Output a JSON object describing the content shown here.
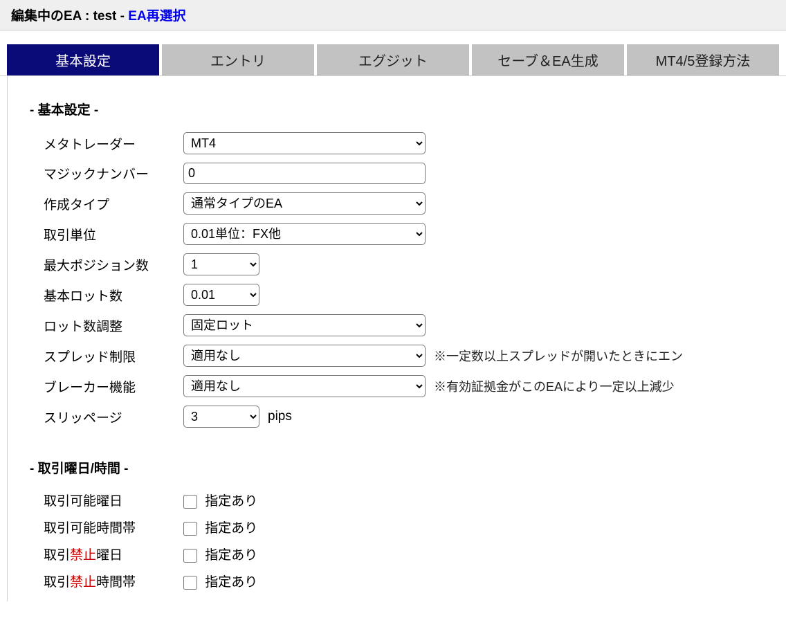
{
  "header": {
    "prefix": "編集中のEA : ",
    "ea_name": "test",
    "separator": "  -  ",
    "reselect_label": "EA再選択"
  },
  "tabs": [
    {
      "label": "基本設定",
      "active": true
    },
    {
      "label": "エントリ",
      "active": false
    },
    {
      "label": "エグジット",
      "active": false
    },
    {
      "label": "セーブ＆EA生成",
      "active": false
    },
    {
      "label": "MT4/5登録方法",
      "active": false
    }
  ],
  "section_basic": {
    "title": "- 基本設定 -",
    "rows": {
      "metatrader": {
        "label": "メタトレーダー",
        "value": "MT4"
      },
      "magic_number": {
        "label": "マジックナンバー",
        "value": "0"
      },
      "create_type": {
        "label": "作成タイプ",
        "value": "通常タイプのEA"
      },
      "trade_unit": {
        "label": "取引単位",
        "value": "0.01単位：FX他"
      },
      "max_positions": {
        "label": "最大ポジション数",
        "value": "1"
      },
      "base_lot": {
        "label": "基本ロット数",
        "value": "0.01"
      },
      "lot_adjust": {
        "label": "ロット数調整",
        "value": "固定ロット"
      },
      "spread_limit": {
        "label": "スプレッド制限",
        "value": "適用なし",
        "hint": "※一定数以上スプレッドが開いたときにエン"
      },
      "breaker": {
        "label": "ブレーカー機能",
        "value": "適用なし",
        "hint": "※有効証拠金がこのEAにより一定以上減少"
      },
      "slippage": {
        "label": "スリッページ",
        "value": "3",
        "unit": "pips"
      }
    }
  },
  "section_schedule": {
    "title": "- 取引曜日/時間 -",
    "rows": {
      "allow_days": {
        "label_pre": "取引可能曜日",
        "checkbox_label": "指定あり"
      },
      "allow_hours": {
        "label_pre": "取引可能時間帯",
        "checkbox_label": "指定あり"
      },
      "forbid_days": {
        "label_parts": [
          "取引",
          "禁止",
          "曜日"
        ],
        "checkbox_label": "指定あり"
      },
      "forbid_hours": {
        "label_parts": [
          "取引",
          "禁止",
          "時間帯"
        ],
        "checkbox_label": "指定あり"
      }
    }
  }
}
